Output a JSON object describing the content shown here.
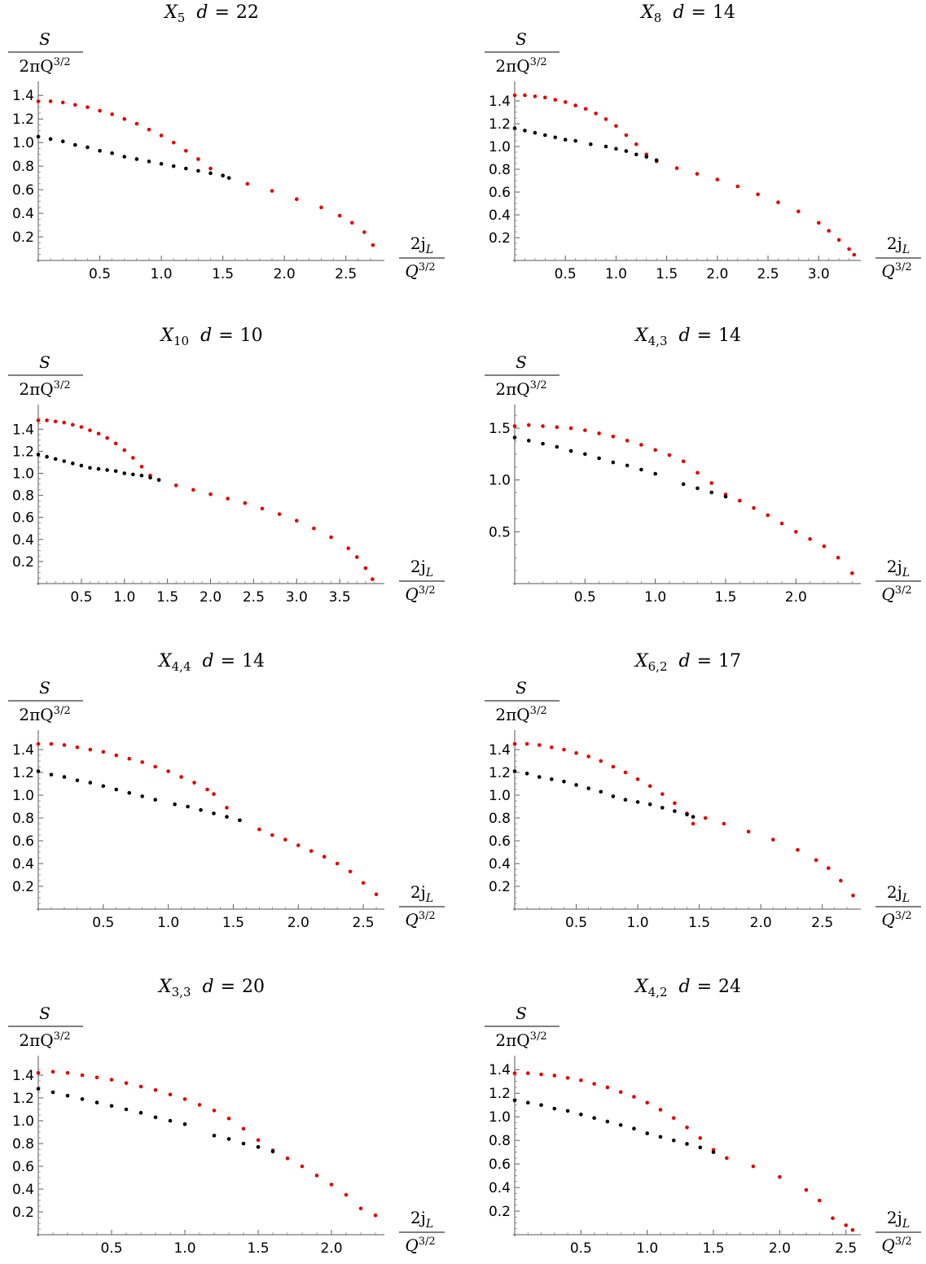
{
  "figure": {
    "ylabel_num": "S",
    "ylabel_den": "2πQ",
    "ylabel_den_exp": "3/2",
    "xlabel_num": "2j",
    "xlabel_num_sub": "L",
    "xlabel_den": "Q",
    "xlabel_den_exp": "3/2",
    "series_colors": {
      "upper": "#e00000",
      "lower": "#000000"
    }
  },
  "chart_data": [
    {
      "type": "scatter",
      "title": {
        "base": "X",
        "sub": "5",
        "d": "22"
      },
      "xticks": [
        "0.5",
        "1.0",
        "1.5",
        "2.0",
        "2.5"
      ],
      "yticks": [
        "0.2",
        "0.4",
        "0.6",
        "0.8",
        "1.0",
        "1.2",
        "1.4"
      ],
      "xlim": [
        0,
        2.8
      ],
      "ylim": [
        0,
        1.45
      ],
      "series": [
        {
          "color": "#e00000",
          "x": [
            0,
            0.1,
            0.2,
            0.3,
            0.4,
            0.5,
            0.6,
            0.7,
            0.8,
            0.9,
            1.0,
            1.1,
            1.2,
            1.3,
            1.4,
            1.5,
            1.55,
            1.7,
            1.9,
            2.1,
            2.3,
            2.45,
            2.55,
            2.65,
            2.72
          ],
          "y": [
            1.35,
            1.35,
            1.34,
            1.32,
            1.3,
            1.27,
            1.24,
            1.2,
            1.16,
            1.11,
            1.06,
            1.0,
            0.93,
            0.86,
            0.78,
            0.72,
            0.7,
            0.65,
            0.59,
            0.52,
            0.45,
            0.38,
            0.32,
            0.24,
            0.13
          ]
        },
        {
          "color": "#000000",
          "x": [
            0,
            0.1,
            0.2,
            0.3,
            0.4,
            0.5,
            0.6,
            0.7,
            0.8,
            0.9,
            1.0,
            1.1,
            1.2,
            1.3,
            1.4,
            1.5,
            1.55
          ],
          "y": [
            1.05,
            1.03,
            1.01,
            0.98,
            0.96,
            0.93,
            0.91,
            0.88,
            0.86,
            0.84,
            0.82,
            0.8,
            0.78,
            0.76,
            0.74,
            0.72,
            0.7
          ]
        }
      ]
    },
    {
      "type": "scatter",
      "title": {
        "base": "X",
        "sub": "8",
        "d": "14"
      },
      "xticks": [
        "0.5",
        "1.0",
        "1.5",
        "2.0",
        "2.5",
        "3.0"
      ],
      "yticks": [
        "0.2",
        "0.4",
        "0.6",
        "0.8",
        "1.0",
        "1.2",
        "1.4"
      ],
      "xlim": [
        0,
        3.4
      ],
      "ylim": [
        0,
        1.5
      ],
      "series": [
        {
          "color": "#e00000",
          "x": [
            0,
            0.1,
            0.2,
            0.3,
            0.4,
            0.5,
            0.6,
            0.7,
            0.8,
            0.9,
            1.0,
            1.1,
            1.2,
            1.3,
            1.4,
            1.6,
            1.8,
            2.0,
            2.2,
            2.4,
            2.6,
            2.8,
            3.0,
            3.1,
            3.2,
            3.3,
            3.35
          ],
          "y": [
            1.45,
            1.45,
            1.44,
            1.43,
            1.41,
            1.39,
            1.36,
            1.33,
            1.29,
            1.24,
            1.18,
            1.1,
            1.02,
            0.93,
            0.87,
            0.81,
            0.76,
            0.71,
            0.65,
            0.58,
            0.51,
            0.43,
            0.33,
            0.26,
            0.18,
            0.1,
            0.05
          ]
        },
        {
          "color": "#000000",
          "x": [
            0,
            0.1,
            0.2,
            0.3,
            0.4,
            0.5,
            0.6,
            0.75,
            0.9,
            1.0,
            1.1,
            1.2,
            1.3,
            1.4
          ],
          "y": [
            1.16,
            1.14,
            1.12,
            1.1,
            1.08,
            1.06,
            1.05,
            1.02,
            1.0,
            0.98,
            0.96,
            0.93,
            0.91,
            0.88
          ]
        }
      ]
    },
    {
      "type": "scatter",
      "title": {
        "base": "X",
        "sub": "10",
        "d": "10"
      },
      "xticks": [
        "0.5",
        "1.0",
        "1.5",
        "2.0",
        "2.5",
        "3.0",
        "3.5"
      ],
      "yticks": [
        "0.2",
        "0.4",
        "0.6",
        "0.8",
        "1.0",
        "1.2",
        "1.4"
      ],
      "xlim": [
        0,
        4.0
      ],
      "ylim": [
        0,
        1.55
      ],
      "series": [
        {
          "color": "#e00000",
          "x": [
            0,
            0.1,
            0.2,
            0.3,
            0.4,
            0.5,
            0.6,
            0.7,
            0.8,
            0.9,
            1.0,
            1.1,
            1.2,
            1.3,
            1.4,
            1.6,
            1.8,
            2.0,
            2.2,
            2.4,
            2.6,
            2.8,
            3.0,
            3.2,
            3.4,
            3.6,
            3.7,
            3.8,
            3.88
          ],
          "y": [
            1.48,
            1.48,
            1.47,
            1.46,
            1.44,
            1.42,
            1.39,
            1.36,
            1.32,
            1.27,
            1.21,
            1.14,
            1.06,
            0.98,
            0.94,
            0.89,
            0.85,
            0.81,
            0.77,
            0.73,
            0.68,
            0.63,
            0.57,
            0.5,
            0.42,
            0.32,
            0.24,
            0.14,
            0.04
          ]
        },
        {
          "color": "#000000",
          "x": [
            0,
            0.1,
            0.2,
            0.3,
            0.4,
            0.5,
            0.6,
            0.7,
            0.8,
            0.9,
            1.0,
            1.1,
            1.2,
            1.3,
            1.4
          ],
          "y": [
            1.17,
            1.15,
            1.13,
            1.11,
            1.09,
            1.07,
            1.05,
            1.04,
            1.03,
            1.02,
            1.0,
            0.99,
            0.98,
            0.96,
            0.94
          ]
        }
      ]
    },
    {
      "type": "scatter",
      "title": {
        "base": "X",
        "sub": "4,3",
        "d": "14"
      },
      "xticks": [
        "0.5",
        "1.0",
        "1.5",
        "2.0"
      ],
      "yticks": [
        "0.5",
        "1.0",
        "1.5"
      ],
      "xlim": [
        0,
        2.45
      ],
      "ylim": [
        0,
        1.65
      ],
      "series": [
        {
          "color": "#e00000",
          "x": [
            0,
            0.1,
            0.2,
            0.3,
            0.4,
            0.5,
            0.6,
            0.7,
            0.8,
            0.9,
            1.0,
            1.1,
            1.2,
            1.3,
            1.4,
            1.5,
            1.6,
            1.7,
            1.8,
            1.9,
            2.0,
            2.1,
            2.2,
            2.3,
            2.4
          ],
          "y": [
            1.52,
            1.53,
            1.52,
            1.51,
            1.5,
            1.48,
            1.45,
            1.42,
            1.38,
            1.34,
            1.29,
            1.24,
            1.18,
            1.07,
            0.97,
            0.86,
            0.8,
            0.73,
            0.66,
            0.58,
            0.5,
            0.43,
            0.36,
            0.25,
            0.1
          ]
        },
        {
          "color": "#000000",
          "x": [
            0,
            0.1,
            0.2,
            0.3,
            0.4,
            0.5,
            0.6,
            0.7,
            0.8,
            0.9,
            1.0,
            1.2,
            1.3,
            1.4,
            1.5
          ],
          "y": [
            1.41,
            1.38,
            1.35,
            1.32,
            1.28,
            1.25,
            1.21,
            1.17,
            1.14,
            1.1,
            1.06,
            0.96,
            0.92,
            0.88,
            0.84
          ]
        }
      ]
    },
    {
      "type": "scatter",
      "title": {
        "base": "X",
        "sub": "4,4",
        "d": "14"
      },
      "xticks": [
        "0.5",
        "1.0",
        "1.5",
        "2.0",
        "2.5"
      ],
      "yticks": [
        "0.2",
        "0.4",
        "0.6",
        "0.8",
        "1.0",
        "1.2",
        "1.4"
      ],
      "xlim": [
        0,
        2.65
      ],
      "ylim": [
        0,
        1.5
      ],
      "series": [
        {
          "color": "#e00000",
          "x": [
            0,
            0.1,
            0.2,
            0.3,
            0.4,
            0.5,
            0.6,
            0.7,
            0.8,
            0.9,
            1.0,
            1.1,
            1.2,
            1.3,
            1.35,
            1.45,
            1.55,
            1.7,
            1.8,
            1.9,
            2.0,
            2.1,
            2.2,
            2.3,
            2.4,
            2.5,
            2.6
          ],
          "y": [
            1.45,
            1.45,
            1.44,
            1.42,
            1.4,
            1.38,
            1.35,
            1.32,
            1.29,
            1.25,
            1.21,
            1.16,
            1.11,
            1.05,
            1.01,
            0.89,
            0.78,
            0.7,
            0.65,
            0.61,
            0.56,
            0.51,
            0.46,
            0.4,
            0.33,
            0.23,
            0.13
          ]
        },
        {
          "color": "#000000",
          "x": [
            0,
            0.1,
            0.2,
            0.3,
            0.4,
            0.5,
            0.6,
            0.7,
            0.8,
            0.9,
            1.05,
            1.15,
            1.25,
            1.35,
            1.45,
            1.55
          ],
          "y": [
            1.21,
            1.18,
            1.16,
            1.13,
            1.11,
            1.08,
            1.05,
            1.02,
            0.99,
            0.96,
            0.92,
            0.9,
            0.87,
            0.84,
            0.81,
            0.78
          ]
        }
      ]
    },
    {
      "type": "scatter",
      "title": {
        "base": "X",
        "sub": "6,2",
        "d": "17"
      },
      "xticks": [
        "0.5",
        "1.0",
        "1.5",
        "2.0",
        "2.5"
      ],
      "yticks": [
        "0.2",
        "0.4",
        "0.6",
        "0.8",
        "1.0",
        "1.2",
        "1.4"
      ],
      "xlim": [
        0,
        2.8
      ],
      "ylim": [
        0,
        1.5
      ],
      "series": [
        {
          "color": "#e00000",
          "x": [
            0,
            0.1,
            0.2,
            0.3,
            0.4,
            0.5,
            0.6,
            0.7,
            0.8,
            0.9,
            1.0,
            1.1,
            1.2,
            1.3,
            1.4,
            1.45,
            1.55,
            1.7,
            1.9,
            2.1,
            2.3,
            2.45,
            2.55,
            2.65,
            2.75
          ],
          "y": [
            1.45,
            1.45,
            1.44,
            1.42,
            1.4,
            1.37,
            1.34,
            1.3,
            1.25,
            1.2,
            1.14,
            1.08,
            1.01,
            0.93,
            0.84,
            0.75,
            0.8,
            0.75,
            0.68,
            0.61,
            0.52,
            0.43,
            0.36,
            0.25,
            0.12
          ]
        },
        {
          "color": "#000000",
          "x": [
            0,
            0.1,
            0.2,
            0.3,
            0.4,
            0.5,
            0.6,
            0.7,
            0.8,
            0.9,
            1.0,
            1.1,
            1.2,
            1.3,
            1.4,
            1.45
          ],
          "y": [
            1.21,
            1.19,
            1.16,
            1.14,
            1.12,
            1.09,
            1.06,
            1.03,
            0.99,
            0.96,
            0.94,
            0.92,
            0.89,
            0.86,
            0.83,
            0.81
          ]
        }
      ]
    },
    {
      "type": "scatter",
      "title": {
        "base": "X",
        "sub": "3,3",
        "d": "20"
      },
      "xticks": [
        "0.5",
        "1.0",
        "1.5",
        "2.0"
      ],
      "yticks": [
        "0.2",
        "0.4",
        "0.6",
        "0.8",
        "1.0",
        "1.2",
        "1.4"
      ],
      "xlim": [
        0,
        2.35
      ],
      "ylim": [
        0,
        1.5
      ],
      "series": [
        {
          "color": "#e00000",
          "x": [
            0,
            0.1,
            0.2,
            0.3,
            0.4,
            0.5,
            0.6,
            0.7,
            0.8,
            0.9,
            1.0,
            1.1,
            1.2,
            1.3,
            1.4,
            1.5,
            1.6,
            1.7,
            1.8,
            1.9,
            2.0,
            2.1,
            2.2,
            2.3
          ],
          "y": [
            1.42,
            1.43,
            1.42,
            1.4,
            1.38,
            1.36,
            1.33,
            1.3,
            1.27,
            1.23,
            1.19,
            1.14,
            1.09,
            1.02,
            0.93,
            0.83,
            0.74,
            0.67,
            0.6,
            0.52,
            0.44,
            0.35,
            0.23,
            0.17
          ]
        },
        {
          "color": "#000000",
          "x": [
            0,
            0.1,
            0.2,
            0.3,
            0.4,
            0.5,
            0.6,
            0.7,
            0.8,
            0.9,
            1.0,
            1.2,
            1.3,
            1.4,
            1.5,
            1.6
          ],
          "y": [
            1.28,
            1.25,
            1.22,
            1.19,
            1.16,
            1.13,
            1.1,
            1.07,
            1.03,
            1.0,
            0.97,
            0.87,
            0.84,
            0.8,
            0.77,
            0.73
          ]
        }
      ]
    },
    {
      "type": "scatter",
      "title": {
        "base": "X",
        "sub": "4,2",
        "d": "24"
      },
      "xticks": [
        "0.5",
        "1.0",
        "1.5",
        "2.0",
        "2.5"
      ],
      "yticks": [
        "0.2",
        "0.4",
        "0.6",
        "0.8",
        "1.0",
        "1.2",
        "1.4"
      ],
      "xlim": [
        0,
        2.6
      ],
      "ylim": [
        0,
        1.45
      ],
      "series": [
        {
          "color": "#e00000",
          "x": [
            0,
            0.1,
            0.2,
            0.3,
            0.4,
            0.5,
            0.6,
            0.7,
            0.8,
            0.9,
            1.0,
            1.1,
            1.2,
            1.3,
            1.4,
            1.5,
            1.6,
            1.8,
            2.0,
            2.2,
            2.3,
            2.4,
            2.5,
            2.55
          ],
          "y": [
            1.37,
            1.37,
            1.36,
            1.35,
            1.33,
            1.31,
            1.28,
            1.25,
            1.21,
            1.17,
            1.12,
            1.06,
            0.99,
            0.91,
            0.82,
            0.72,
            0.65,
            0.58,
            0.49,
            0.38,
            0.29,
            0.14,
            0.08,
            0.04
          ]
        },
        {
          "color": "#000000",
          "x": [
            0,
            0.1,
            0.2,
            0.3,
            0.4,
            0.5,
            0.6,
            0.7,
            0.8,
            0.9,
            1.0,
            1.1,
            1.2,
            1.3,
            1.4,
            1.5
          ],
          "y": [
            1.14,
            1.12,
            1.1,
            1.07,
            1.05,
            1.02,
            0.99,
            0.96,
            0.93,
            0.9,
            0.86,
            0.83,
            0.8,
            0.77,
            0.74,
            0.7
          ]
        }
      ]
    }
  ]
}
